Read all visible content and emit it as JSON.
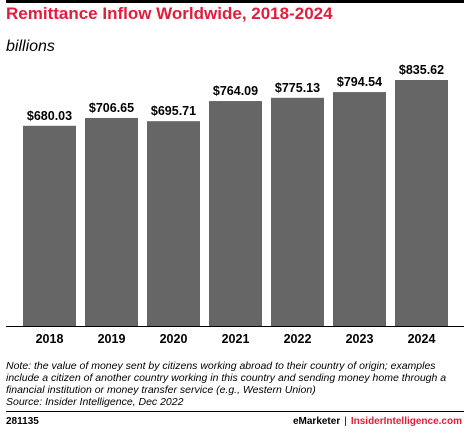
{
  "header": {
    "title": "Remittance Inflow Worldwide, 2018-2024",
    "subtitle": "billions"
  },
  "chart_data": {
    "type": "bar",
    "title": "Remittance Inflow Worldwide, 2018-2024",
    "subtitle": "billions",
    "categories": [
      "2018",
      "2019",
      "2020",
      "2021",
      "2022",
      "2023",
      "2024"
    ],
    "values": [
      680.03,
      706.65,
      695.71,
      764.09,
      775.13,
      794.54,
      835.62
    ],
    "data_labels": [
      "$680.03",
      "$706.65",
      "$695.71",
      "$764.09",
      "$775.13",
      "$794.54",
      "$835.62"
    ],
    "ylim": [
      0,
      835.62
    ],
    "bar_color": "#666666",
    "grid": false,
    "legend": "none"
  },
  "footer": {
    "note": "Note: the value of money sent by citizens working abroad to their country of origin; examples include a citizen of another country working in this country and sending money home through a financial institution or money transfer service (e.g., Western Union)",
    "source": "Source: Insider Intelligence, Dec 2022",
    "chart_id": "281135",
    "brand1": "eMarketer",
    "separator": "|",
    "brand2": "InsiderIntelligence.com"
  }
}
